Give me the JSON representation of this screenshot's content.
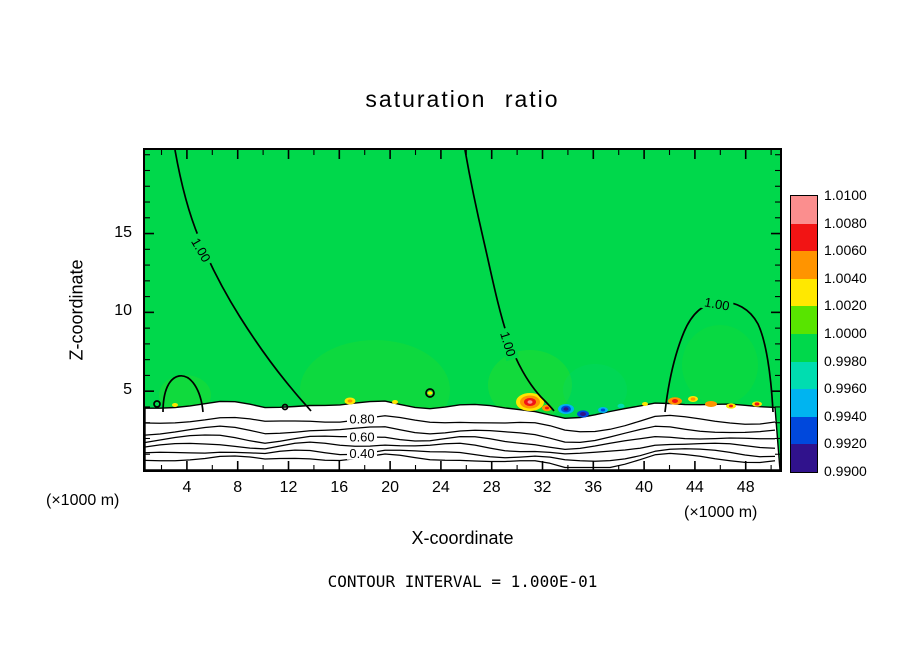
{
  "title": "saturation ratio",
  "footer": "CONTOUR INTERVAL = 1.000E-01",
  "axes": {
    "x": {
      "label": "X-coordinate",
      "units": "(×1000 m)",
      "ticks": [
        4,
        8,
        12,
        16,
        20,
        24,
        28,
        32,
        36,
        40,
        44,
        48
      ],
      "range": [
        1,
        50
      ]
    },
    "z": {
      "label": "Z-coordinate",
      "units": "(×1000 m)",
      "ticks": [
        5,
        10,
        15
      ],
      "range": [
        0,
        20
      ]
    }
  },
  "contour_labels": {
    "c100": "1.00",
    "c080": "0.80",
    "c060": "0.60",
    "c040": "0.40"
  },
  "colorbar": {
    "levels": [
      "1.0100",
      "1.0080",
      "1.0060",
      "1.0040",
      "1.0020",
      "1.0000",
      "0.9980",
      "0.9960",
      "0.9940",
      "0.9920",
      "0.9900"
    ],
    "colors": [
      "#fb8e8e",
      "#f21414",
      "#ff9400",
      "#ffe800",
      "#58e400",
      "#00d84b",
      "#00ddb0",
      "#00b4f0",
      "#0048dc",
      "#30128c"
    ]
  },
  "chart_data": {
    "type": "heatmap",
    "title": "saturation ratio",
    "xlabel": "X-coordinate (×1000 m)",
    "ylabel": "Z-coordinate (×1000 m)",
    "x_range": [
      1,
      50
    ],
    "z_range": [
      0,
      20
    ],
    "x_ticks": [
      4,
      8,
      12,
      16,
      20,
      24,
      28,
      32,
      36,
      40,
      44,
      48
    ],
    "z_ticks": [
      5,
      10,
      15
    ],
    "contour_interval": 0.1,
    "labeled_contours": [
      0.4,
      0.6,
      0.8,
      1.0
    ],
    "colorbar": {
      "min": 0.99,
      "max": 1.01,
      "tick_step": 0.002,
      "tick_labels": [
        "1.0100",
        "1.0080",
        "1.0060",
        "1.0040",
        "1.0020",
        "1.0000",
        "0.9980",
        "0.9960",
        "0.9940",
        "0.9920",
        "0.9900"
      ],
      "colors_top_to_bottom": [
        "#fb8e8e",
        "#f21414",
        "#ff9400",
        "#ffe800",
        "#58e400",
        "#00d84b",
        "#00ddb0",
        "#00b4f0",
        "#0048dc",
        "#30128c"
      ]
    },
    "field_description": {
      "background": "saturation ratio ≈ 1.000 (green) over most of the domain above z ≈ 4",
      "surface_layer": "shallow surface layer below z ≈ 4 where the ratio drops to ≈ 0.3; stacked contours 0.90–0.30 every 0.10, labeled 0.80 / 0.60 / 0.40 near x ≈ 17",
      "supersaturated_spots": [
        {
          "x": 17,
          "z": 4,
          "peak": 1.004
        },
        {
          "x": 30,
          "z": 4,
          "peak": 1.01
        },
        {
          "x": 42,
          "z": 4,
          "peak": 1.006
        },
        {
          "x": 46,
          "z": 4,
          "peak": 1.006
        }
      ],
      "subsaturated_spots": [
        {
          "x": 32,
          "z": 4,
          "min": 0.99
        },
        {
          "x": 34,
          "z": 4,
          "min": 0.992
        }
      ],
      "unit_contour_descriptions": [
        "1.00 contour descending from the top boundary near x≈3 to the surface layer near x≈13",
        "1.00 contour descending from the top boundary near x≈26 to the surface near x≈33",
        "closed 1.00 contour over 41≲x≲50 reaching up to z≈10",
        "small closed 1.00 contour near x≈2–5 below z≈6"
      ]
    }
  }
}
